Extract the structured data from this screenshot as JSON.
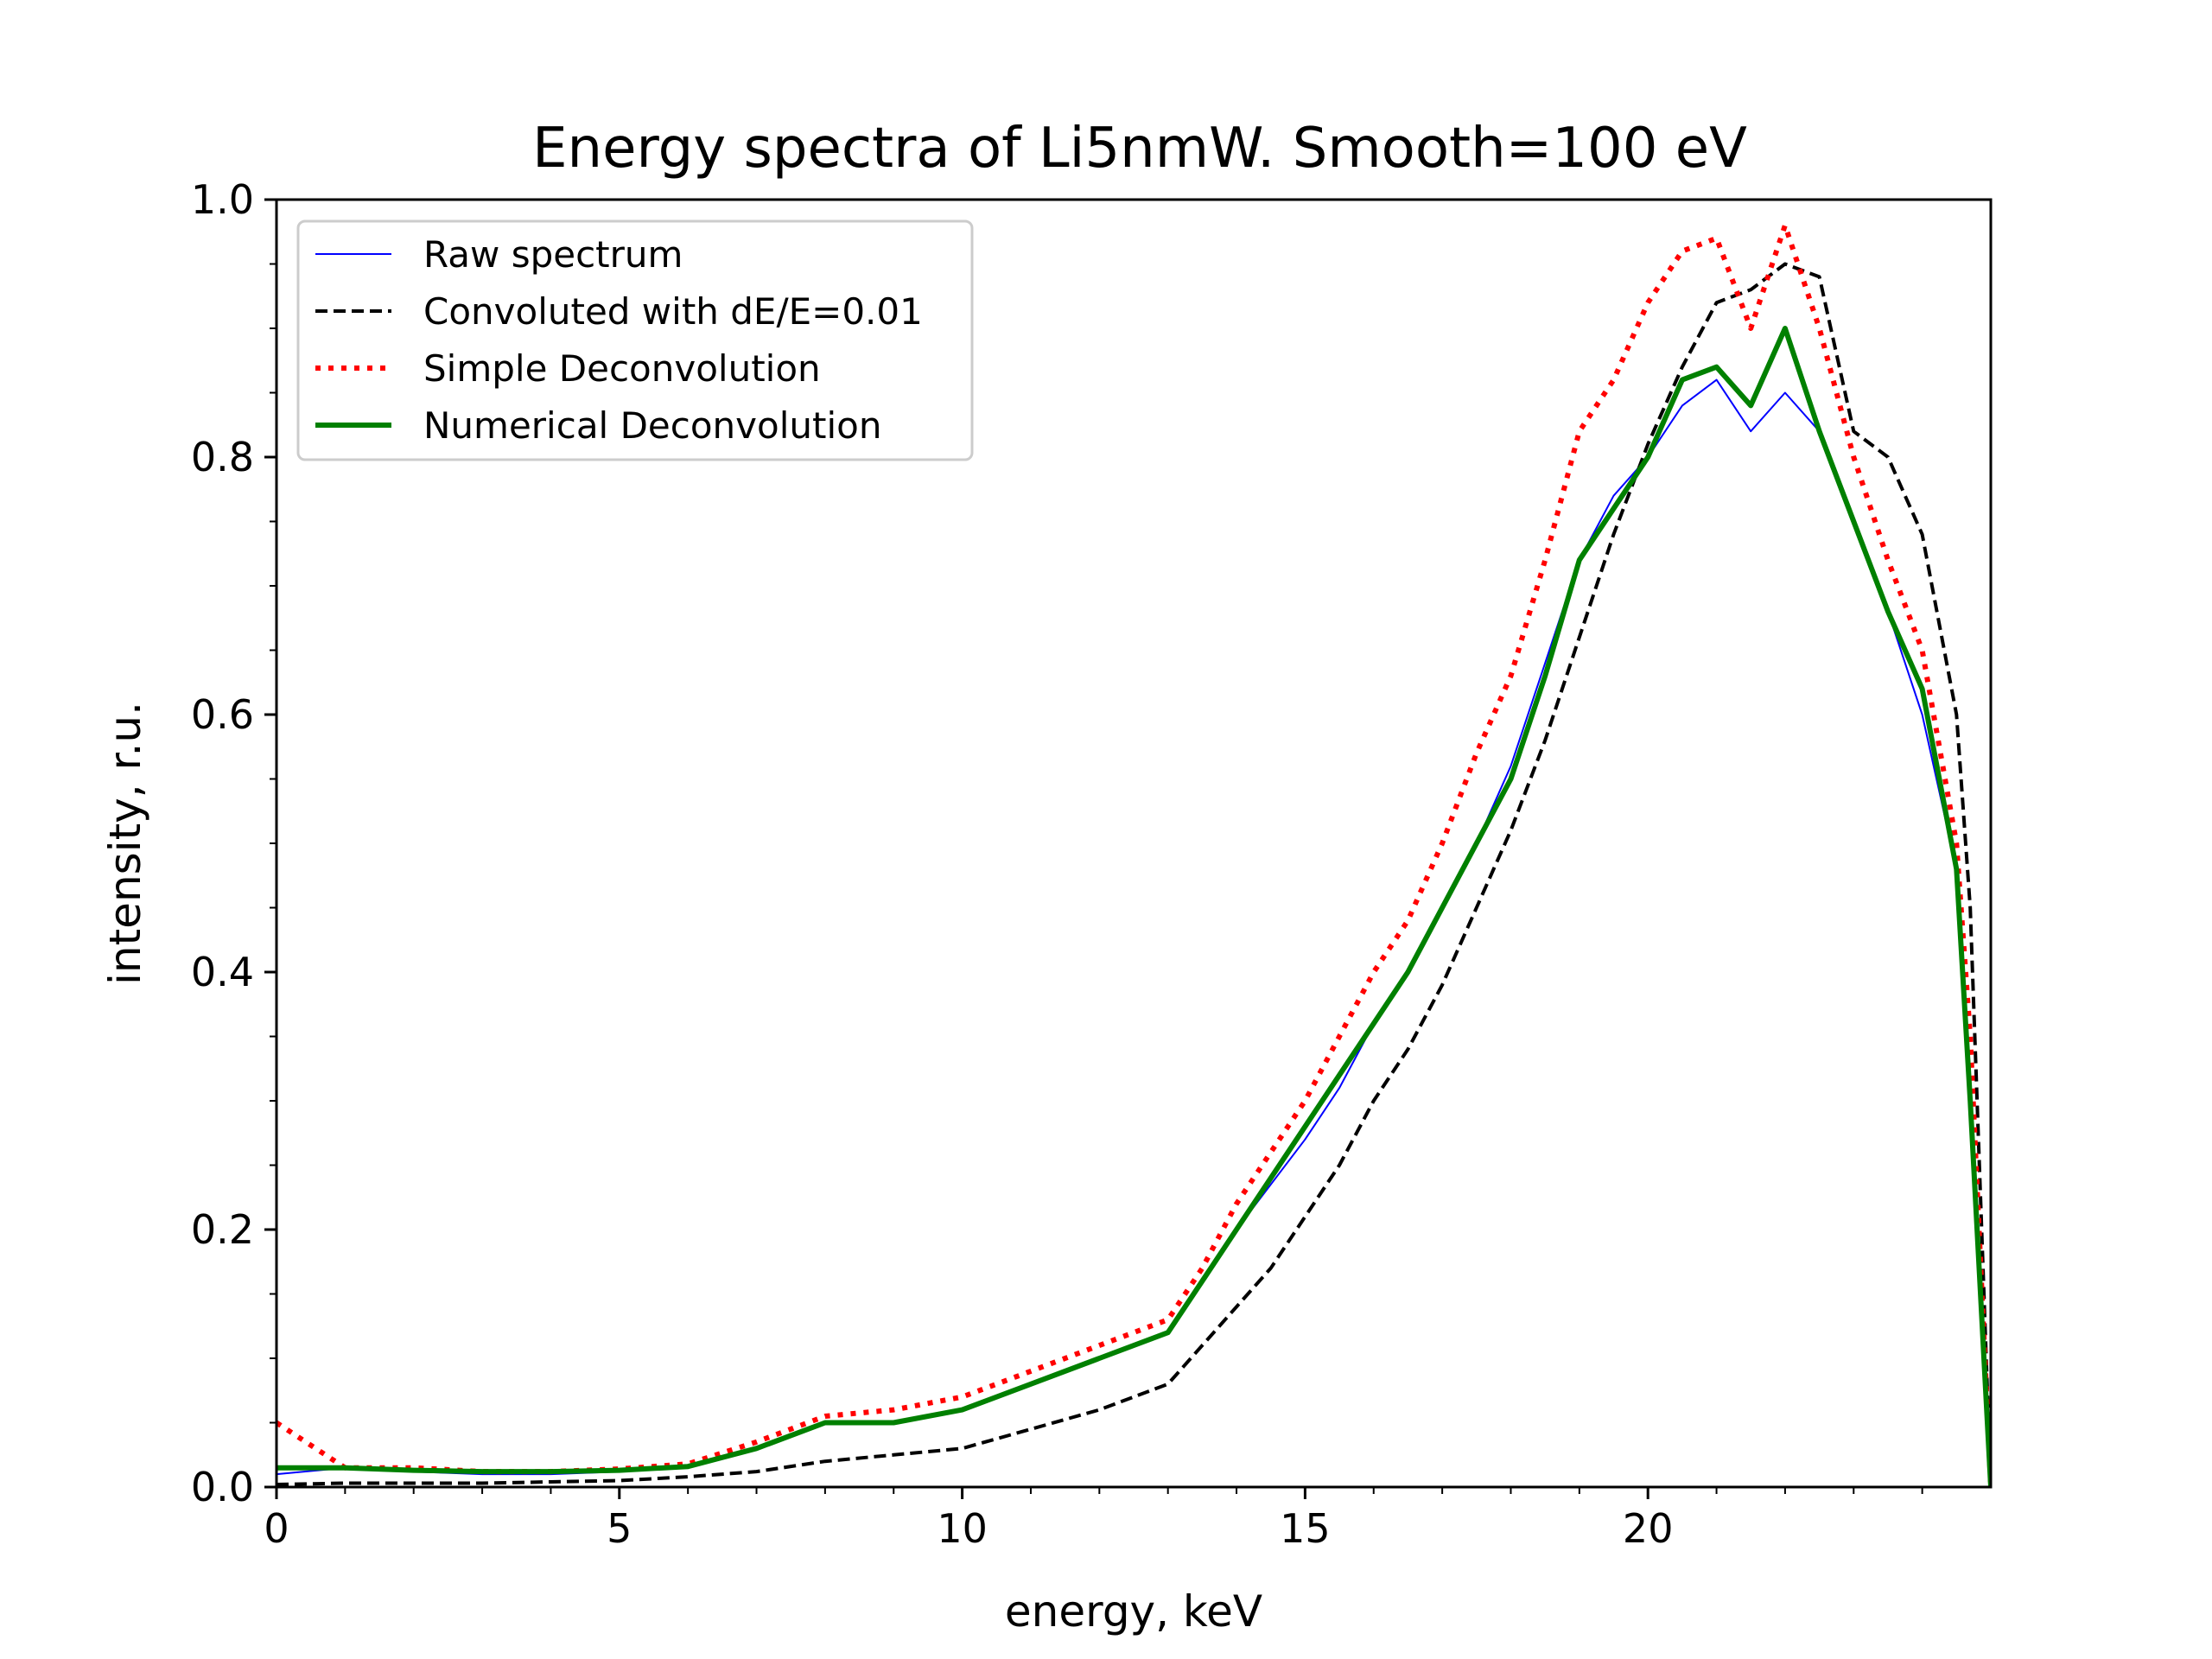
{
  "chart_data": {
    "type": "line",
    "title": "Energy spectra of Li5nmW. Smooth=100 eV",
    "xlabel": "energy, keV",
    "ylabel": "intensity, r.u.",
    "xlim": [
      0,
      25
    ],
    "ylim": [
      0,
      1.0
    ],
    "x_ticks": [
      0,
      5,
      10,
      15,
      20
    ],
    "x_tick_labels": [
      "0",
      "5",
      "10",
      "15",
      "20"
    ],
    "y_ticks": [
      0,
      0.2,
      0.4,
      0.6,
      0.8,
      1.0
    ],
    "y_tick_labels": [
      "0.0",
      "0.2",
      "0.4",
      "0.6",
      "0.8",
      "1.0"
    ],
    "grid": false,
    "legend_position": "top-left",
    "series": [
      {
        "name": "Raw spectrum",
        "color": "#0000ff",
        "style": "solid-thin",
        "x": [
          0,
          1,
          2,
          3,
          4,
          5,
          6,
          7,
          8,
          9,
          10,
          11,
          12,
          13,
          13.5,
          14,
          15,
          15.5,
          16,
          16.5,
          17,
          17.5,
          18,
          18.5,
          19,
          19.5,
          20,
          20.5,
          21,
          21.5,
          22,
          22.5,
          23,
          23.5,
          24,
          24.5,
          24.7,
          25
        ],
        "y": [
          0.01,
          0.015,
          0.012,
          0.01,
          0.01,
          0.012,
          0.015,
          0.03,
          0.05,
          0.05,
          0.06,
          0.08,
          0.1,
          0.12,
          0.16,
          0.2,
          0.27,
          0.31,
          0.36,
          0.4,
          0.45,
          0.5,
          0.56,
          0.64,
          0.72,
          0.77,
          0.8,
          0.84,
          0.86,
          0.82,
          0.85,
          0.82,
          0.75,
          0.68,
          0.6,
          0.48,
          0.3,
          0.0
        ]
      },
      {
        "name": "Convoluted with dE/E=0.01",
        "color": "#000000",
        "style": "dashed",
        "x": [
          0,
          1,
          2,
          3,
          4,
          5,
          6,
          7,
          8,
          9,
          10,
          11,
          12,
          13,
          13.5,
          14,
          14.5,
          15,
          15.5,
          16,
          16.5,
          17,
          17.5,
          18,
          18.5,
          19,
          19.5,
          20,
          20.5,
          21,
          21.5,
          22,
          22.5,
          23,
          23.5,
          24,
          24.5,
          24.7,
          25
        ],
        "y": [
          0.002,
          0.003,
          0.003,
          0.003,
          0.004,
          0.005,
          0.008,
          0.012,
          0.02,
          0.025,
          0.03,
          0.045,
          0.06,
          0.08,
          0.11,
          0.14,
          0.17,
          0.21,
          0.25,
          0.3,
          0.34,
          0.39,
          0.45,
          0.51,
          0.58,
          0.66,
          0.74,
          0.81,
          0.87,
          0.92,
          0.93,
          0.95,
          0.94,
          0.82,
          0.8,
          0.74,
          0.6,
          0.45,
          0.0
        ]
      },
      {
        "name": "Simple Deconvolution",
        "color": "#ff0000",
        "style": "dotted",
        "x": [
          0,
          1,
          2,
          3,
          4,
          5,
          6,
          7,
          8,
          9,
          10,
          11,
          12,
          13,
          13.5,
          14,
          14.5,
          15,
          15.5,
          16,
          16.5,
          17,
          17.5,
          18,
          18.5,
          19,
          19.5,
          20,
          20.5,
          21,
          21.5,
          22,
          22.5,
          23,
          23.5,
          24,
          24.5,
          24.7,
          25
        ],
        "y": [
          0.05,
          0.015,
          0.015,
          0.012,
          0.012,
          0.014,
          0.018,
          0.035,
          0.055,
          0.06,
          0.07,
          0.09,
          0.11,
          0.13,
          0.17,
          0.22,
          0.26,
          0.3,
          0.35,
          0.4,
          0.44,
          0.5,
          0.57,
          0.63,
          0.72,
          0.82,
          0.86,
          0.92,
          0.96,
          0.97,
          0.9,
          0.98,
          0.9,
          0.8,
          0.72,
          0.65,
          0.5,
          0.35,
          0.0
        ]
      },
      {
        "name": "Numerical Deconvolution",
        "color": "#008000",
        "style": "solid-thick",
        "x": [
          0,
          1,
          2,
          3,
          4,
          5,
          6,
          7,
          8,
          9,
          10,
          11,
          12,
          13,
          13.5,
          14,
          14.5,
          15,
          15.5,
          16,
          16.5,
          17,
          17.5,
          18,
          18.5,
          19,
          19.5,
          20,
          20.5,
          21,
          21.5,
          22,
          22.5,
          23,
          23.5,
          24,
          24.5,
          24.7,
          25
        ],
        "y": [
          0.015,
          0.015,
          0.013,
          0.012,
          0.012,
          0.013,
          0.016,
          0.03,
          0.05,
          0.05,
          0.06,
          0.08,
          0.1,
          0.12,
          0.16,
          0.2,
          0.24,
          0.28,
          0.32,
          0.36,
          0.4,
          0.45,
          0.5,
          0.55,
          0.63,
          0.72,
          0.76,
          0.8,
          0.86,
          0.87,
          0.84,
          0.9,
          0.82,
          0.75,
          0.68,
          0.62,
          0.48,
          0.3,
          0.0
        ]
      }
    ]
  }
}
